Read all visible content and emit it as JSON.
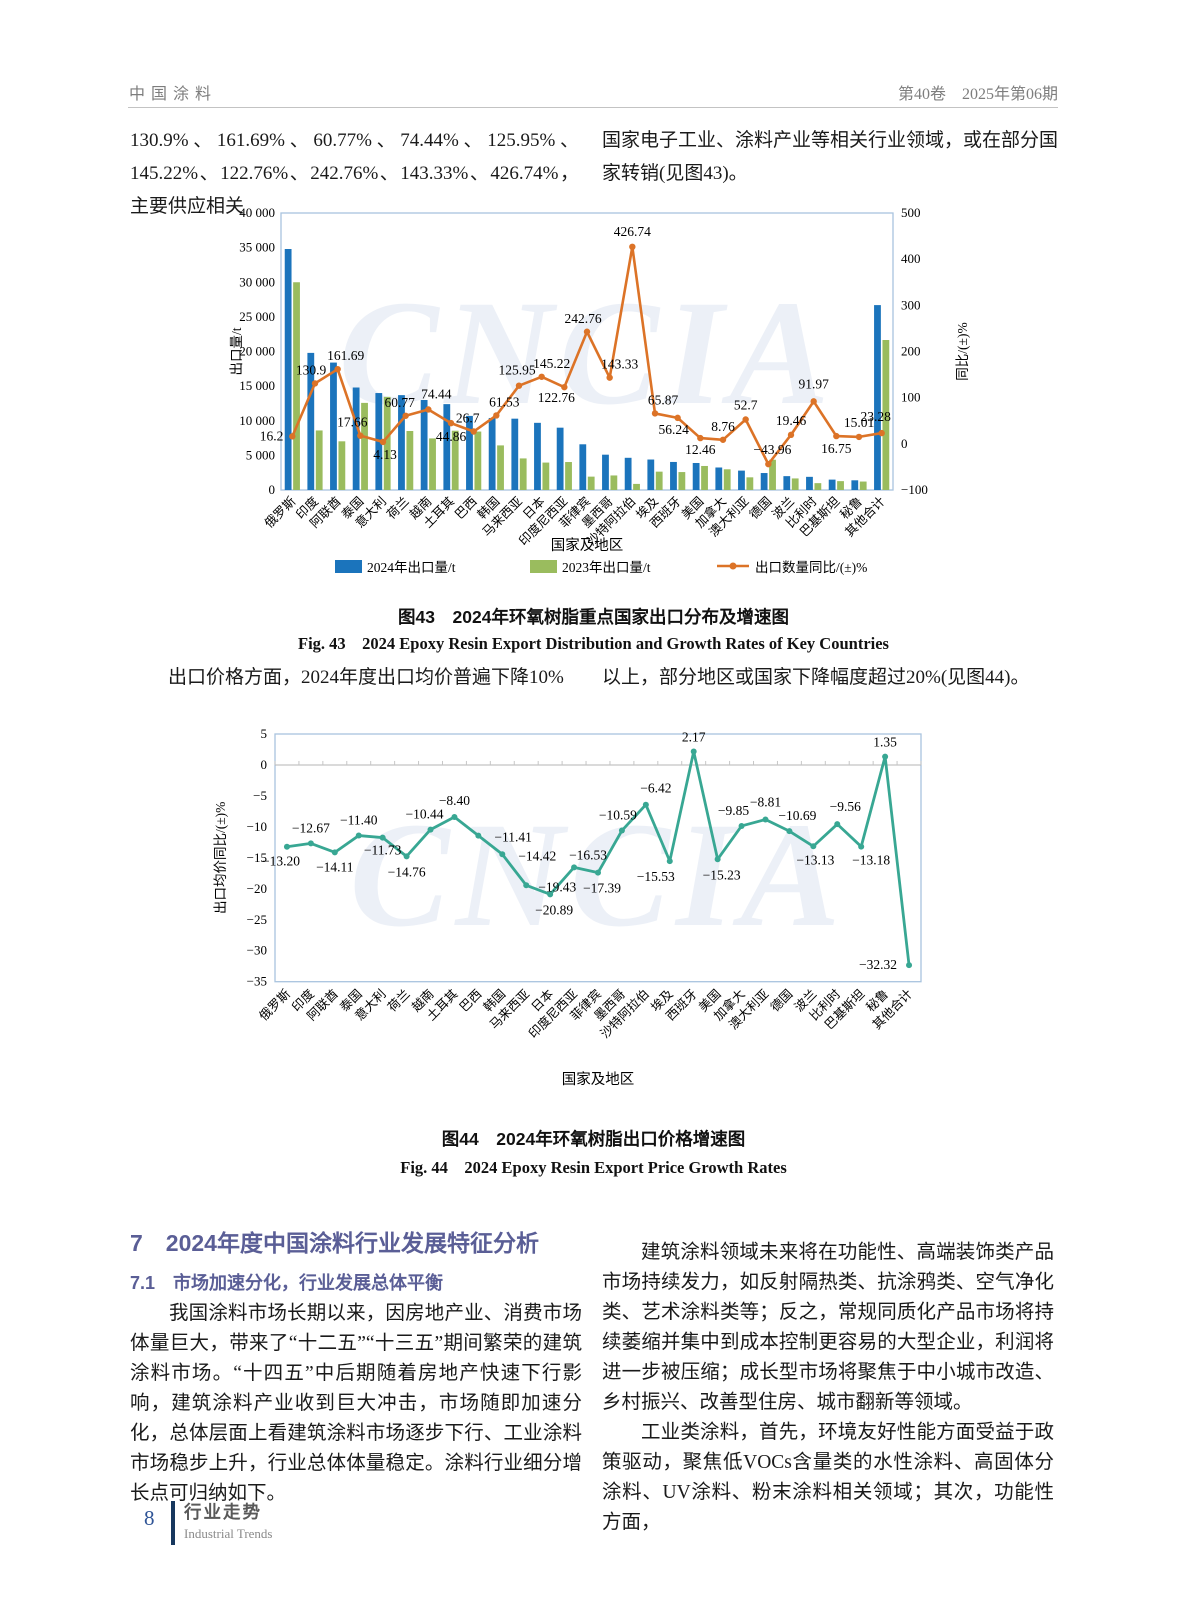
{
  "header": {
    "journal": "中国涂料",
    "issue": "第40卷　2025年第06期"
  },
  "intro": {
    "left": "130.9%、161.69%、60.77%、74.44%、125.95%、145.22%、122.76%、242.76%、143.33%、426.74%，主要供应相关",
    "right": "国家电子工业、涂料产业等相关行业领域，或在部分国家转销(见图43)。"
  },
  "figure43": {
    "caption_zh": "图43　2024年环氧树脂重点国家出口分布及增速图",
    "caption_en": "Fig. 43　2024 Epoxy Resin Export Distribution and Growth Rates of Key Countries"
  },
  "price_note": {
    "left": "出口价格方面，2024年度出口均价普遍下降10%",
    "right": "以上，部分地区或国家下降幅度超过20%(见图44)。"
  },
  "figure44": {
    "caption_zh": "图44　2024年环氧树脂出口价格增速图",
    "caption_en": "Fig. 44　2024 Epoxy Resin Export Price Growth Rates"
  },
  "section7": {
    "heading": "7　2024年度中国涂料行业发展特征分析",
    "subheading": "7.1　市场加速分化，行业发展总体平衡",
    "left_paragraph": "我国涂料市场长期以来，因房地产业、消费市场体量巨大，带来了“十二五”“十三五”期间繁荣的建筑涂料市场。“十四五”中后期随着房地产快速下行影响，建筑涂料产业收到巨大冲击，市场随即加速分化，总体层面上看建筑涂料市场逐步下行、工业涂料市场稳步上升，行业总体体量稳定。涂料行业细分增长点可归纳如下。",
    "right_paragraph_1": "建筑涂料领域未来将在功能性、高端装饰类产品市场持续发力，如反射隔热类、抗涂鸦类、空气净化类、艺术涂料类等；反之，常规同质化产品市场将持续萎缩并集中到成本控制更容易的大型企业，利润将进一步被压缩；成长型市场将聚焦于中小城市改造、乡村振兴、改善型住房、城市翻新等领域。",
    "right_paragraph_2": "工业类涂料，首先，环境友好性能方面受益于政策驱动，聚焦低VOCs含量类的水性涂料、高固体分涂料、UV涂料、粉末涂料相关领域；其次，功能性方面，"
  },
  "footer": {
    "page_number": "8",
    "column_zh": "行业走势",
    "column_en": "Industrial Trends"
  },
  "watermark": "CNCIA",
  "chart_data": [
    {
      "type": "bar",
      "title": "图43　2024年环氧树脂重点国家出口分布及增速图",
      "categories": [
        "俄罗斯",
        "印度",
        "阿联酋",
        "泰国",
        "意大利",
        "荷兰",
        "越南",
        "土耳其",
        "巴西",
        "韩国",
        "马来西亚",
        "日本",
        "印度尼西亚",
        "菲律宾",
        "墨西哥",
        "沙特阿拉伯",
        "埃及",
        "西班牙",
        "美国",
        "加拿大",
        "澳大利亚",
        "德国",
        "波兰",
        "比利时",
        "巴基斯坦",
        "秘鲁",
        "其他合计"
      ],
      "series": [
        {
          "name": "2024年出口量/t",
          "type": "bar",
          "color": "#1b74bc",
          "values": [
            34800,
            19800,
            18400,
            14800,
            14000,
            13700,
            13000,
            12400,
            10700,
            10400,
            10300,
            9700,
            9000,
            6600,
            5100,
            4650,
            4400,
            4050,
            3900,
            3250,
            2800,
            2450,
            2000,
            1900,
            1500,
            1400,
            26700
          ]
        },
        {
          "name": "2023年出口量/t",
          "type": "bar",
          "color": "#9abc5e",
          "values": [
            30000,
            8600,
            7030,
            12580,
            13450,
            8520,
            7450,
            8560,
            8440,
            6440,
            4560,
            3960,
            4040,
            1930,
            2100,
            880,
            2650,
            2590,
            3470,
            2990,
            1830,
            4370,
            1670,
            990,
            1280,
            1220,
            21660
          ]
        },
        {
          "name": "出口数量同比/(±)%",
          "type": "line",
          "color": "#dc7327",
          "axis": "right",
          "values": [
            16.2,
            130.9,
            161.69,
            17.66,
            4.13,
            60.77,
            74.44,
            44.86,
            26.7,
            61.53,
            125.95,
            145.22,
            122.76,
            242.76,
            143.33,
            426.74,
            65.87,
            56.24,
            12.46,
            8.76,
            52.7,
            -43.96,
            19.46,
            91.97,
            16.75,
            15.01,
            23.28
          ],
          "labels": [
            "16.2",
            "130.9",
            "161.69",
            "17.66",
            "4.13",
            "60.77",
            "74.44",
            "44.86",
            "26.7",
            "61.53",
            "125.95",
            "145.22",
            "122.76",
            "242.76",
            "143.33",
            "426.74",
            "65.87",
            "56.24",
            "12.46",
            "8.76",
            "52.7",
            "-43.96",
            "19.46",
            "91.97",
            "16.75",
            "15.01",
            "23.28"
          ]
        }
      ],
      "xlabel": "国家及地区",
      "ylabel_left": "出口量/t",
      "ylabel_right": "同比/(±)%",
      "ylim_left": [
        0,
        40000
      ],
      "ylim_right": [
        -100,
        500
      ],
      "yticks_left": [
        "0",
        "5 000",
        "10 000",
        "15 000",
        "20 000",
        "25 000",
        "30 000",
        "35 000",
        "40 000"
      ],
      "yticks_right": [
        "-100",
        "0",
        "100",
        "200",
        "300",
        "400",
        "500"
      ],
      "legend_position": "bottom",
      "grid": "off"
    },
    {
      "type": "line",
      "title": "图44　2024年环氧树脂出口价格增速图",
      "categories": [
        "俄罗斯",
        "印度",
        "阿联酋",
        "泰国",
        "意大利",
        "荷兰",
        "越南",
        "土耳其",
        "巴西",
        "韩国",
        "马来西亚",
        "日本",
        "印度尼西亚",
        "菲律宾",
        "墨西哥",
        "沙特阿拉伯",
        "埃及",
        "西班牙",
        "美国",
        "加拿大",
        "澳大利亚",
        "德国",
        "波兰",
        "比利时",
        "巴基斯坦",
        "秘鲁",
        "其他合计"
      ],
      "series": [
        {
          "name": "出口均价同比/(±)%",
          "type": "line",
          "color": "#38a793",
          "values": [
            -13.2,
            -12.67,
            -14.11,
            -11.4,
            -11.73,
            -14.76,
            -10.44,
            -8.4,
            -11.41,
            -14.42,
            -19.43,
            -20.89,
            -16.53,
            -17.39,
            -10.59,
            -6.42,
            -15.53,
            2.17,
            -15.23,
            -9.85,
            -8.81,
            -10.69,
            -13.13,
            -9.56,
            -13.18,
            1.35,
            -32.32
          ],
          "labels": [
            "-13.20",
            "-12.67",
            "-14.11",
            "-11.40",
            "-11.73",
            "-14.76",
            "-10.44",
            "-8.40",
            "-11.41",
            "-14.42",
            "-19.43",
            "-20.89",
            "-16.53",
            "-17.39",
            "-10.59",
            "-6.42",
            "-15.53",
            "2.17",
            "-15.23",
            "-9.85",
            "-8.81",
            "-10.69",
            "-13.13",
            "-9.56",
            "-13.18",
            "1.35",
            "-32.32"
          ]
        }
      ],
      "xlabel": "国家及地区",
      "ylabel": "出口均价同比/(±)%",
      "ylim": [
        -35,
        5
      ],
      "yticks": [
        "5",
        "0",
        "-5",
        "-10",
        "-15",
        "-20",
        "-25",
        "-30",
        "-35"
      ],
      "grid": "zero-axis-with-category-ticks",
      "legend_position": "none"
    }
  ]
}
